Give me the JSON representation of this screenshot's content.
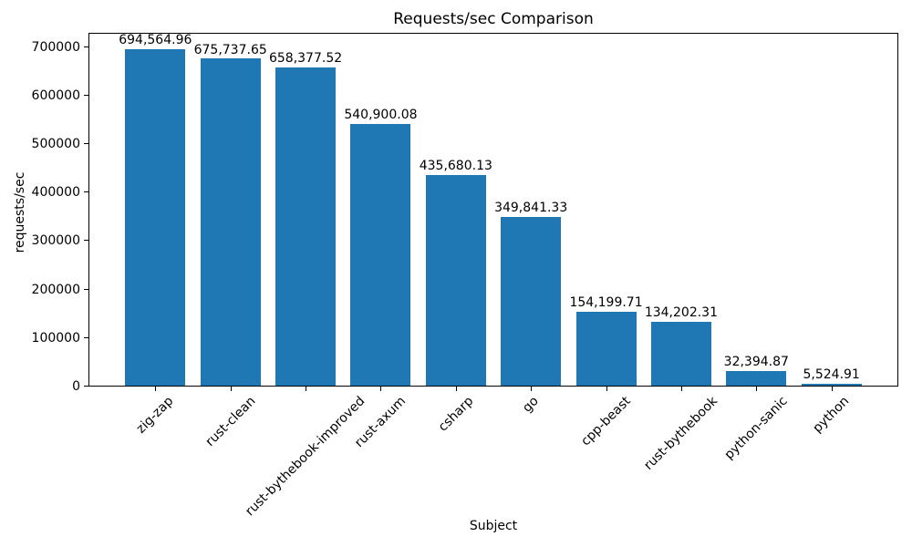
{
  "figure": {
    "background": "#ffffff",
    "text_color": "#000000"
  },
  "chart_data": {
    "type": "bar",
    "title": "Requests/sec Comparison",
    "xlabel": "Subject",
    "ylabel": "requests/sec",
    "categories": [
      "zig-zap",
      "rust-clean",
      "rust-bythebook-improved",
      "rust-axum",
      "csharp",
      "go",
      "cpp-beast",
      "rust-bythebook",
      "python-sanic",
      "python"
    ],
    "values": [
      694564.96,
      675737.65,
      658377.52,
      540900.08,
      435680.13,
      349841.33,
      154199.71,
      134202.31,
      32394.87,
      5524.91
    ],
    "value_labels": [
      "694,564.96",
      "675,737.65",
      "658,377.52",
      "540,900.08",
      "435,680.13",
      "349,841.33",
      "154,199.71",
      "134,202.31",
      "32,394.87",
      "5,524.91"
    ],
    "bar_color": "#1f77b4",
    "ylim": [
      0,
      729293.21
    ],
    "yticks": [
      0,
      100000,
      200000,
      300000,
      400000,
      500000,
      600000,
      700000
    ],
    "ytick_labels": [
      "0",
      "100000",
      "200000",
      "300000",
      "400000",
      "500000",
      "600000",
      "700000"
    ],
    "x_tick_rotation_deg": 45,
    "grid": false,
    "legend": null
  }
}
